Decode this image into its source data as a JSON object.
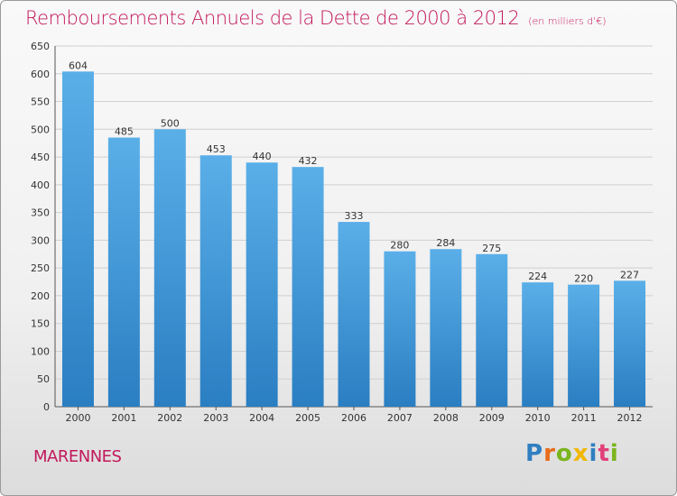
{
  "header": {
    "title": "Remboursements Annuels de la Dette de 2000 à 2012",
    "unit": "(en milliers d'€)"
  },
  "footer": {
    "commune": "MARENNES",
    "logo": {
      "p": "P",
      "r": "r",
      "o": "o",
      "x": "x",
      "i1": "i",
      "t": "t",
      "i2": "i"
    }
  },
  "colors": {
    "title": "#c2185b",
    "bar_top": "#5aafe8",
    "bar_bottom": "#2a7ec2",
    "grid": "#cfcfcf"
  },
  "chart_data": {
    "type": "bar",
    "categories": [
      "2000",
      "2001",
      "2002",
      "2003",
      "2004",
      "2005",
      "2006",
      "2007",
      "2008",
      "2009",
      "2010",
      "2011",
      "2012"
    ],
    "values": [
      604,
      485,
      500,
      453,
      440,
      432,
      333,
      280,
      284,
      275,
      224,
      220,
      227
    ],
    "yticks": [
      0,
      50,
      100,
      150,
      200,
      250,
      300,
      350,
      400,
      450,
      500,
      550,
      600,
      650
    ],
    "ylim": [
      0,
      650
    ],
    "grid": true,
    "title": "Remboursements Annuels de la Dette de 2000 à 2012",
    "xlabel": "",
    "ylabel": ""
  }
}
